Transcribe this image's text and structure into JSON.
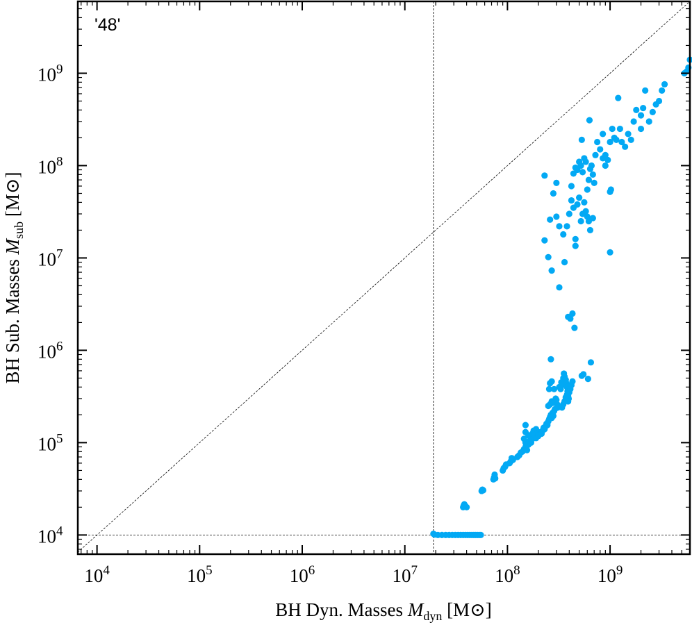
{
  "chart_data": {
    "type": "scatter",
    "x_scale": "log",
    "y_scale": "log",
    "xlim": [
      6500,
      6000000000
    ],
    "ylim": [
      6200,
      6000000000
    ],
    "annotation": "'48'",
    "xlabel_parts": {
      "pre": "BH Dyn. Masses ",
      "italic": "M",
      "sub": "dyn",
      "post": " [M",
      "sun": "⊙",
      "close": "]"
    },
    "ylabel_parts": {
      "pre": "BH Sub. Masses ",
      "italic": "M",
      "sub": "sub",
      "post": " [M",
      "sun": "⊙",
      "close": "]"
    },
    "x_ticks": [
      {
        "value": 10000,
        "base": "10",
        "exp": "4"
      },
      {
        "value": 100000,
        "base": "10",
        "exp": "5"
      },
      {
        "value": 1000000,
        "base": "10",
        "exp": "6"
      },
      {
        "value": 10000000,
        "base": "10",
        "exp": "7"
      },
      {
        "value": 100000000,
        "base": "10",
        "exp": "8"
      },
      {
        "value": 1000000000,
        "base": "10",
        "exp": "9"
      }
    ],
    "y_ticks": [
      {
        "value": 10000,
        "base": "10",
        "exp": "4"
      },
      {
        "value": 100000,
        "base": "10",
        "exp": "5"
      },
      {
        "value": 1000000,
        "base": "10",
        "exp": "6"
      },
      {
        "value": 10000000,
        "base": "10",
        "exp": "7"
      },
      {
        "value": 100000000,
        "base": "10",
        "exp": "8"
      },
      {
        "value": 1000000000,
        "base": "10",
        "exp": "9"
      }
    ],
    "reference_lines": [
      {
        "kind": "identity",
        "style": "dashed"
      },
      {
        "kind": "vertical",
        "x": 19000000,
        "style": "dashed"
      },
      {
        "kind": "horizontal",
        "y": 10000,
        "style": "dashed"
      }
    ],
    "marker_color": "#03a9f4",
    "series": [
      {
        "points": [
          [
            19000000,
            10300
          ],
          [
            19500000,
            10100
          ],
          [
            21000000,
            10000
          ],
          [
            23000000,
            10000
          ],
          [
            25000000,
            10000
          ],
          [
            27000000,
            10000
          ],
          [
            29000000,
            10000
          ],
          [
            31000000,
            10000
          ],
          [
            33000000,
            10000
          ],
          [
            35000000,
            10000
          ],
          [
            37000000,
            10000
          ],
          [
            39000000,
            10000
          ],
          [
            41000000,
            10000
          ],
          [
            43000000,
            10000
          ],
          [
            45000000,
            10000
          ],
          [
            47000000,
            10000
          ],
          [
            49000000,
            10000
          ],
          [
            51000000,
            10000
          ],
          [
            53000000,
            10000
          ],
          [
            55000000,
            10000
          ],
          [
            37000000,
            20000
          ],
          [
            38000000,
            21500
          ],
          [
            39000000,
            20500
          ],
          [
            40000000,
            20000
          ],
          [
            37500000,
            20800
          ],
          [
            56000000,
            30000
          ],
          [
            57000000,
            31000
          ],
          [
            58000000,
            30500
          ],
          [
            73000000,
            40000
          ],
          [
            74000000,
            42000
          ],
          [
            75000000,
            45000
          ],
          [
            76000000,
            41000
          ],
          [
            90000000,
            50000
          ],
          [
            92000000,
            53000
          ],
          [
            95000000,
            55000
          ],
          [
            97000000,
            58000
          ],
          [
            105000000,
            60000
          ],
          [
            108000000,
            63000
          ],
          [
            110000000,
            68000
          ],
          [
            113000000,
            65000
          ],
          [
            125000000,
            70000
          ],
          [
            130000000,
            73000
          ],
          [
            135000000,
            78000
          ],
          [
            140000000,
            80000
          ],
          [
            145000000,
            85000
          ],
          [
            150000000,
            90000
          ],
          [
            155000000,
            83000
          ],
          [
            160000000,
            95000
          ],
          [
            150000000,
            100000
          ],
          [
            145000000,
            110000
          ],
          [
            150000000,
            130000
          ],
          [
            150000000,
            155000
          ],
          [
            160000000,
            120000
          ],
          [
            165000000,
            105000
          ],
          [
            170000000,
            100000
          ],
          [
            175000000,
            110000
          ],
          [
            180000000,
            115000
          ],
          [
            185000000,
            120000
          ],
          [
            190000000,
            112000
          ],
          [
            195000000,
            125000
          ],
          [
            200000000,
            118000
          ],
          [
            190000000,
            140000
          ],
          [
            180000000,
            135000
          ],
          [
            175000000,
            125000
          ],
          [
            210000000,
            130000
          ],
          [
            215000000,
            125000
          ],
          [
            220000000,
            135000
          ],
          [
            225000000,
            145000
          ],
          [
            230000000,
            140000
          ],
          [
            235000000,
            150000
          ],
          [
            240000000,
            160000
          ],
          [
            245000000,
            155000
          ],
          [
            250000000,
            170000
          ],
          [
            255000000,
            180000
          ],
          [
            260000000,
            190000
          ],
          [
            265000000,
            200000
          ],
          [
            270000000,
            185000
          ],
          [
            275000000,
            210000
          ],
          [
            280000000,
            195000
          ],
          [
            285000000,
            220000
          ],
          [
            290000000,
            230000
          ],
          [
            250000000,
            250000
          ],
          [
            260000000,
            260000
          ],
          [
            270000000,
            280000
          ],
          [
            280000000,
            270000
          ],
          [
            295000000,
            300000
          ],
          [
            300000000,
            290000
          ],
          [
            305000000,
            260000
          ],
          [
            310000000,
            240000
          ],
          [
            255000000,
            380000
          ],
          [
            260000000,
            440000
          ],
          [
            270000000,
            460000
          ],
          [
            265000000,
            800000
          ],
          [
            285000000,
            380000
          ],
          [
            320000000,
            400000
          ],
          [
            330000000,
            380000
          ],
          [
            335000000,
            450000
          ],
          [
            340000000,
            420000
          ],
          [
            350000000,
            500000
          ],
          [
            355000000,
            560000
          ],
          [
            360000000,
            520000
          ],
          [
            370000000,
            480000
          ],
          [
            375000000,
            440000
          ],
          [
            380000000,
            400000
          ],
          [
            385000000,
            360000
          ],
          [
            390000000,
            320000
          ],
          [
            395000000,
            300000
          ],
          [
            400000000,
            350000
          ],
          [
            410000000,
            380000
          ],
          [
            420000000,
            420000
          ],
          [
            430000000,
            460000
          ],
          [
            340000000,
            240000
          ],
          [
            350000000,
            260000
          ],
          [
            360000000,
            280000
          ],
          [
            370000000,
            310000
          ],
          [
            380000000,
            330000
          ],
          [
            390000000,
            280000
          ],
          [
            530000000,
            530000
          ],
          [
            550000000,
            550000
          ],
          [
            610000000,
            490000
          ],
          [
            650000000,
            740000
          ],
          [
            390000000,
            2300000
          ],
          [
            410000000,
            2200000
          ],
          [
            430000000,
            2500000
          ],
          [
            450000000,
            1750000
          ],
          [
            320000000,
            4800000
          ],
          [
            270000000,
            7300000
          ],
          [
            250000000,
            10200000
          ],
          [
            230000000,
            15500000
          ],
          [
            260000000,
            26000000
          ],
          [
            300000000,
            28000000
          ],
          [
            320000000,
            22000000
          ],
          [
            350000000,
            18000000
          ],
          [
            360000000,
            9000000
          ],
          [
            380000000,
            22000000
          ],
          [
            400000000,
            30000000
          ],
          [
            420000000,
            42000000
          ],
          [
            440000000,
            35000000
          ],
          [
            460000000,
            16000000
          ],
          [
            460000000,
            13500000
          ],
          [
            480000000,
            38000000
          ],
          [
            500000000,
            45000000
          ],
          [
            520000000,
            25000000
          ],
          [
            540000000,
            30000000
          ],
          [
            560000000,
            40000000
          ],
          [
            580000000,
            32000000
          ],
          [
            600000000,
            28000000
          ],
          [
            620000000,
            25000000
          ],
          [
            640000000,
            20000000
          ],
          [
            680000000,
            27000000
          ],
          [
            280000000,
            50000000
          ],
          [
            300000000,
            65000000
          ],
          [
            230000000,
            78000000
          ],
          [
            420000000,
            60000000
          ],
          [
            440000000,
            82000000
          ],
          [
            460000000,
            95000000
          ],
          [
            480000000,
            90000000
          ],
          [
            500000000,
            110000000
          ],
          [
            520000000,
            100000000
          ],
          [
            540000000,
            85000000
          ],
          [
            560000000,
            120000000
          ],
          [
            580000000,
            110000000
          ],
          [
            600000000,
            55000000
          ],
          [
            620000000,
            70000000
          ],
          [
            640000000,
            92000000
          ],
          [
            660000000,
            100000000
          ],
          [
            680000000,
            80000000
          ],
          [
            700000000,
            65000000
          ],
          [
            720000000,
            130000000
          ],
          [
            750000000,
            180000000
          ],
          [
            800000000,
            150000000
          ],
          [
            850000000,
            120000000
          ],
          [
            900000000,
            100000000
          ],
          [
            950000000,
            115000000
          ],
          [
            1000000000,
            52000000
          ],
          [
            1020000000,
            55000000
          ],
          [
            1000000000,
            11500000
          ],
          [
            1000000000,
            180000000
          ],
          [
            1050000000,
            250000000
          ],
          [
            1100000000,
            200000000
          ],
          [
            1150000000,
            190000000
          ],
          [
            1200000000,
            540000000
          ],
          [
            1250000000,
            250000000
          ],
          [
            1300000000,
            180000000
          ],
          [
            1400000000,
            160000000
          ],
          [
            1500000000,
            220000000
          ],
          [
            1600000000,
            190000000
          ],
          [
            1700000000,
            300000000
          ],
          [
            1800000000,
            400000000
          ],
          [
            2000000000,
            350000000
          ],
          [
            2100000000,
            420000000
          ],
          [
            2200000000,
            650000000
          ],
          [
            2400000000,
            300000000
          ],
          [
            2600000000,
            380000000
          ],
          [
            2800000000,
            460000000
          ],
          [
            3000000000,
            500000000
          ],
          [
            3200000000,
            650000000
          ],
          [
            3400000000,
            760000000
          ],
          [
            2000000000,
            250000000
          ],
          [
            630000000,
            310000000
          ],
          [
            530000000,
            190000000
          ],
          [
            900000000,
            130000000
          ],
          [
            850000000,
            220000000
          ],
          [
            5300000000,
            1000000000
          ],
          [
            5600000000,
            1050000000
          ],
          [
            5800000000,
            1150000000
          ],
          [
            6000000000,
            1400000000
          ]
        ]
      }
    ]
  }
}
